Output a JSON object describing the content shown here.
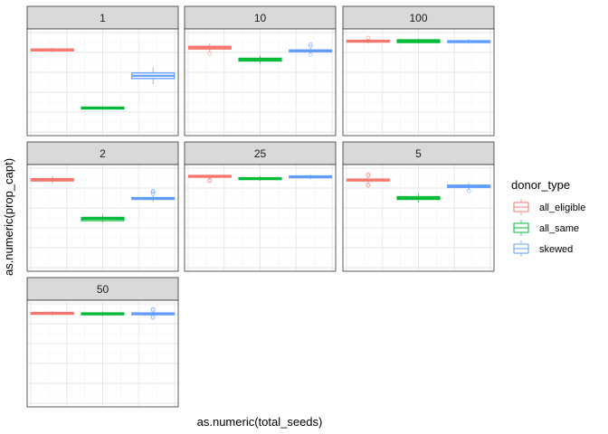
{
  "chart_data": {
    "type": "boxplot",
    "xlabel": "as.numeric(total_seeds)",
    "ylabel": "as.numeric(prop_capt)",
    "ylim": [
      0,
      1
    ],
    "grid": true,
    "legend": {
      "title": "donor_type",
      "placement": "right",
      "entries": [
        {
          "name": "all_eligible",
          "color": "#F8766D"
        },
        {
          "name": "all_same",
          "color": "#00BA38"
        },
        {
          "name": "skewed",
          "color": "#619CFF"
        }
      ]
    },
    "panels": [
      {
        "label": "1",
        "boxes": [
          {
            "group": "all_eligible",
            "q1": 0.87,
            "median": 0.88,
            "q3": 0.89,
            "lo": 0.85,
            "hi": 0.91,
            "outliers": []
          },
          {
            "group": "all_same",
            "q1": 0.24,
            "median": 0.25,
            "q3": 0.26,
            "lo": 0.23,
            "hi": 0.27,
            "outliers": []
          },
          {
            "group": "skewed",
            "q1": 0.57,
            "median": 0.6,
            "q3": 0.63,
            "lo": 0.51,
            "hi": 0.69,
            "outliers": []
          }
        ]
      },
      {
        "label": "10",
        "boxes": [
          {
            "group": "all_eligible",
            "q1": 0.89,
            "median": 0.905,
            "q3": 0.92,
            "lo": 0.86,
            "hi": 0.95,
            "outliers": [
              0.84
            ]
          },
          {
            "group": "all_same",
            "q1": 0.76,
            "median": 0.775,
            "q3": 0.79,
            "lo": 0.73,
            "hi": 0.82,
            "outliers": []
          },
          {
            "group": "skewed",
            "q1": 0.86,
            "median": 0.87,
            "q3": 0.88,
            "lo": 0.84,
            "hi": 0.9,
            "outliers": [
              0.83,
              0.92,
              0.94
            ]
          }
        ]
      },
      {
        "label": "100",
        "boxes": [
          {
            "group": "all_eligible",
            "q1": 0.965,
            "median": 0.975,
            "q3": 0.985,
            "lo": 0.95,
            "hi": 1.0,
            "outliers": [
              1.01
            ]
          },
          {
            "group": "all_same",
            "q1": 0.96,
            "median": 0.975,
            "q3": 0.99,
            "lo": 0.95,
            "hi": 1.0,
            "outliers": []
          },
          {
            "group": "skewed",
            "q1": 0.96,
            "median": 0.97,
            "q3": 0.98,
            "lo": 0.95,
            "hi": 1.0,
            "outliers": []
          }
        ]
      },
      {
        "label": "2",
        "boxes": [
          {
            "group": "all_eligible",
            "q1": 0.93,
            "median": 0.94,
            "q3": 0.955,
            "lo": 0.9,
            "hi": 0.98,
            "outliers": []
          },
          {
            "group": "all_same",
            "q1": 0.5,
            "median": 0.52,
            "q3": 0.535,
            "lo": 0.48,
            "hi": 0.56,
            "outliers": []
          },
          {
            "group": "skewed",
            "q1": 0.73,
            "median": 0.74,
            "q3": 0.75,
            "lo": 0.7,
            "hi": 0.77,
            "outliers": [
              0.79,
              0.81,
              0.82
            ]
          }
        ]
      },
      {
        "label": "25",
        "boxes": [
          {
            "group": "all_eligible",
            "q1": 0.97,
            "median": 0.98,
            "q3": 0.99,
            "lo": 0.95,
            "hi": 1.0,
            "outliers": [
              0.93,
              0.94
            ]
          },
          {
            "group": "all_same",
            "q1": 0.945,
            "median": 0.955,
            "q3": 0.965,
            "lo": 0.93,
            "hi": 0.98,
            "outliers": []
          },
          {
            "group": "skewed",
            "q1": 0.965,
            "median": 0.975,
            "q3": 0.985,
            "lo": 0.95,
            "hi": 1.0,
            "outliers": []
          }
        ]
      },
      {
        "label": "5",
        "boxes": [
          {
            "group": "all_eligible",
            "q1": 0.93,
            "median": 0.94,
            "q3": 0.95,
            "lo": 0.91,
            "hi": 0.97,
            "outliers": [
              0.88,
              0.89,
              0.99,
              1.0
            ]
          },
          {
            "group": "all_same",
            "q1": 0.73,
            "median": 0.745,
            "q3": 0.76,
            "lo": 0.7,
            "hi": 0.79,
            "outliers": []
          },
          {
            "group": "skewed",
            "q1": 0.86,
            "median": 0.87,
            "q3": 0.885,
            "lo": 0.83,
            "hi": 0.91,
            "outliers": [
              0.82
            ]
          }
        ]
      },
      {
        "label": "50",
        "boxes": [
          {
            "group": "all_eligible",
            "q1": 0.955,
            "median": 0.965,
            "q3": 0.975,
            "lo": 0.94,
            "hi": 0.99,
            "outliers": []
          },
          {
            "group": "all_same",
            "q1": 0.95,
            "median": 0.96,
            "q3": 0.97,
            "lo": 0.935,
            "hi": 0.985,
            "outliers": []
          },
          {
            "group": "skewed",
            "q1": 0.95,
            "median": 0.96,
            "q3": 0.97,
            "lo": 0.94,
            "hi": 0.98,
            "outliers": [
              0.92,
              0.93,
              1.0,
              1.01
            ]
          }
        ]
      }
    ]
  }
}
